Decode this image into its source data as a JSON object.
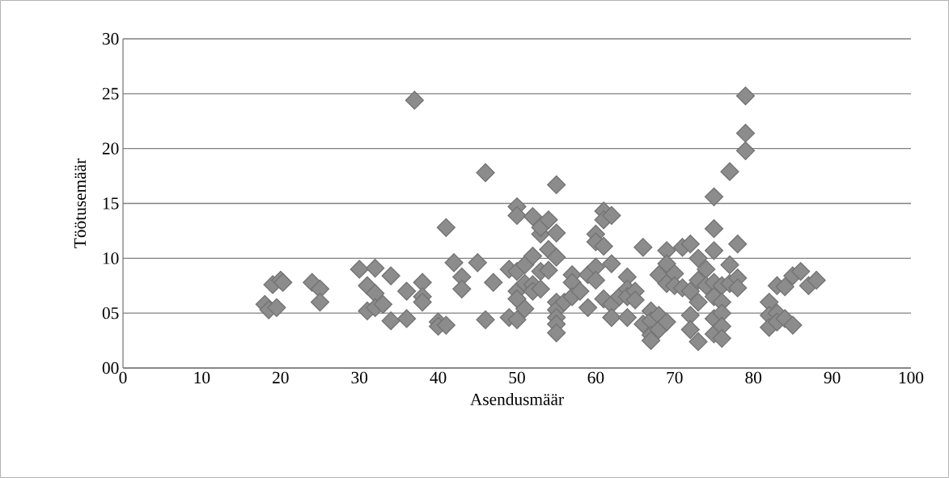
{
  "chart_data": {
    "type": "scatter",
    "xlabel": "Asendusmäär",
    "ylabel": "Töötusemäär",
    "marker": "diamond",
    "color": "#8c8c8c",
    "grid": "y",
    "xlim": [
      0,
      100
    ],
    "ylim": [
      0,
      30
    ],
    "xticks": [
      0,
      10,
      20,
      30,
      40,
      50,
      60,
      70,
      80,
      90,
      100
    ],
    "yticks": [
      {
        "value": 0,
        "label": "00"
      },
      {
        "value": 5,
        "label": "05"
      },
      10,
      15,
      20,
      25,
      30
    ],
    "x": [
      18,
      18.5,
      19,
      19.5,
      20,
      20.3,
      24,
      25,
      25,
      30,
      31,
      31,
      32,
      32,
      32,
      33,
      34,
      34,
      36,
      36,
      37,
      38,
      38,
      38,
      40,
      40,
      41,
      41,
      42,
      43,
      43,
      45,
      46,
      46,
      47,
      49,
      49,
      50,
      50,
      50,
      50,
      50,
      50,
      51,
      51,
      51,
      52,
      52,
      52,
      52,
      53,
      53,
      53,
      53,
      54,
      54,
      54,
      55,
      55,
      55,
      55,
      55,
      55,
      55,
      55,
      56,
      57,
      57,
      57,
      58,
      59,
      59,
      60,
      60,
      60,
      60,
      61,
      61,
      61,
      61,
      62,
      62,
      62,
      62,
      63,
      64,
      64,
      64,
      64,
      65,
      65,
      66,
      66,
      67,
      67,
      67,
      67,
      68,
      68,
      68,
      69,
      69,
      69,
      69,
      70,
      70,
      71,
      71,
      72,
      72,
      72,
      72,
      73,
      73,
      73,
      73,
      74,
      74,
      75,
      75,
      75,
      75,
      75,
      75,
      75,
      76,
      76,
      76,
      76,
      76,
      77,
      77,
      77,
      78,
      78,
      78,
      79,
      79,
      79,
      82,
      82,
      82,
      83,
      83,
      83,
      84,
      84,
      85,
      85,
      86,
      87,
      88
    ],
    "values": [
      5.8,
      5.3,
      7.6,
      5.5,
      8,
      7.8,
      7.8,
      7.2,
      6,
      9,
      7.5,
      5.2,
      9.1,
      6.8,
      5.5,
      5.8,
      8.4,
      4.3,
      7,
      4.5,
      24.4,
      7.8,
      6.5,
      6,
      4.2,
      3.8,
      3.9,
      12.8,
      9.6,
      8.3,
      7.2,
      9.6,
      17.8,
      4.4,
      7.8,
      9,
      4.6,
      14.7,
      13.9,
      8.8,
      7,
      6.3,
      4.4,
      9.4,
      7.7,
      5.4,
      13.8,
      10.2,
      7.6,
      7,
      12.2,
      12.8,
      8.8,
      7.2,
      13.5,
      10.8,
      8.9,
      16.7,
      12.3,
      10.1,
      6,
      5.3,
      4.6,
      4,
      3.2,
      6,
      8.5,
      7.8,
      6.5,
      7,
      5.5,
      8.5,
      12.2,
      11.5,
      9.2,
      8,
      14.3,
      13.5,
      11.1,
      6.3,
      13.9,
      9.5,
      5.8,
      4.6,
      6.5,
      8.3,
      7.2,
      6.5,
      4.6,
      7,
      6.2,
      11,
      4,
      5.2,
      4.3,
      3,
      2.5,
      8.5,
      4.8,
      3.5,
      10.7,
      9.5,
      7.7,
      4.2,
      8.6,
      7.5,
      11,
      7.3,
      11.3,
      7,
      4.8,
      3.5,
      10,
      8,
      6,
      2.4,
      9,
      7.5,
      15.6,
      12.7,
      10.7,
      7.8,
      6.5,
      4.5,
      3.1,
      7.5,
      6,
      5,
      3.8,
      2.7,
      17.9,
      9.4,
      7.7,
      11.3,
      8.2,
      7.3,
      24.8,
      21.4,
      19.8,
      6,
      4.8,
      3.7,
      7.5,
      5,
      4.2,
      7.4,
      4.5,
      8.4,
      3.9,
      8.8,
      7.5,
      8
    ]
  }
}
